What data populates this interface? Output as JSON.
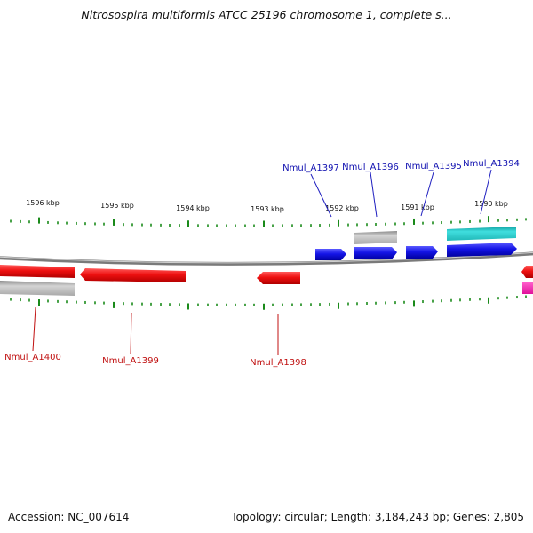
{
  "title": "Nitrosospira multiformis ATCC 25196 chromosome 1, complete s...",
  "footer": {
    "accession": "Accession: NC_007614",
    "topology": "Topology: circular; Length: 3,184,243 bp; Genes: 2,805"
  },
  "colors": {
    "tick": "#1a8a1a",
    "backbone": "#8c8c8c",
    "forward_cds": "#1414e6",
    "reverse_cds": "#ee1010",
    "gray_feature": "#b0b0b0",
    "cyan_feature": "#20c0c0",
    "magenta_feature": "#ff20b0",
    "label_top": "#1010b0",
    "label_bottom": "#c01010"
  },
  "scale": {
    "unit": "kbp",
    "labels": [
      "1596 kbp",
      "1595 kbp",
      "1594 kbp",
      "1593 kbp",
      "1592 kbp",
      "1591 kbp",
      "1590 kbp"
    ]
  },
  "genes_top": [
    {
      "name": "Nmul_A1397"
    },
    {
      "name": "Nmul_A1396"
    },
    {
      "name": "Nmul_A1395"
    },
    {
      "name": "Nmul_A1394"
    }
  ],
  "genes_bottom": [
    {
      "name": "Nmul_A1400"
    },
    {
      "name": "Nmul_A1399"
    },
    {
      "name": "Nmul_A1398"
    }
  ]
}
